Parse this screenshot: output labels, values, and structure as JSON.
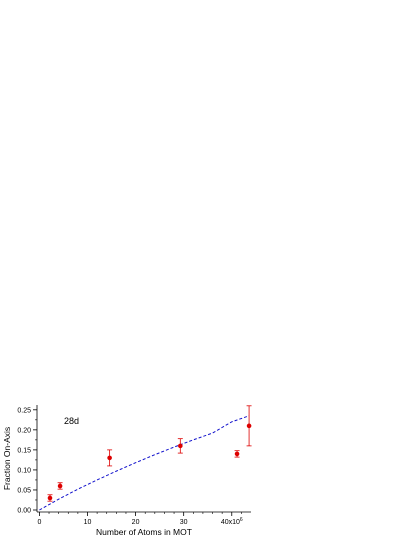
{
  "chart_data": {
    "type": "scatter",
    "xlabel": "Number of Atoms in MOT",
    "ylabel": "Fraction On-Axis",
    "annotation": "28d",
    "x_ticks": [
      {
        "value": 0,
        "label": "0"
      },
      {
        "value": 10,
        "label": "10"
      },
      {
        "value": 20,
        "label": "20"
      },
      {
        "value": 30,
        "label": "30"
      },
      {
        "value": 40,
        "label": "40x10"
      }
    ],
    "x_exponent_label": "6",
    "y_ticks": [
      {
        "value": 0.0,
        "label": "0.00"
      },
      {
        "value": 0.05,
        "label": "0.05"
      },
      {
        "value": 0.1,
        "label": "0.10"
      },
      {
        "value": 0.15,
        "label": "0.15"
      },
      {
        "value": 0.2,
        "label": "0.20"
      },
      {
        "value": 0.25,
        "label": "0.25"
      }
    ],
    "xlim": [
      -0.5,
      44
    ],
    "ylim": [
      -0.005,
      0.262
    ],
    "points": [
      {
        "x": 2.2,
        "y": 0.03,
        "err": 0.008
      },
      {
        "x": 4.3,
        "y": 0.06,
        "err": 0.008
      },
      {
        "x": 14.6,
        "y": 0.13,
        "err": 0.02
      },
      {
        "x": 29.3,
        "y": 0.16,
        "err": 0.018
      },
      {
        "x": 41.1,
        "y": 0.14,
        "err": 0.008
      },
      {
        "x": 43.6,
        "y": 0.21,
        "err": 0.05
      }
    ],
    "fit_curve": {
      "x": [
        0,
        4,
        8,
        12,
        16,
        20,
        24,
        28,
        32,
        36,
        40,
        43.6
      ],
      "y": [
        0.0,
        0.027,
        0.052,
        0.075,
        0.097,
        0.118,
        0.138,
        0.157,
        0.175,
        0.192,
        0.22,
        0.235
      ]
    },
    "point_color": "#dd0000",
    "fit_color": "#1111cc",
    "grid": false,
    "legend": "none"
  }
}
